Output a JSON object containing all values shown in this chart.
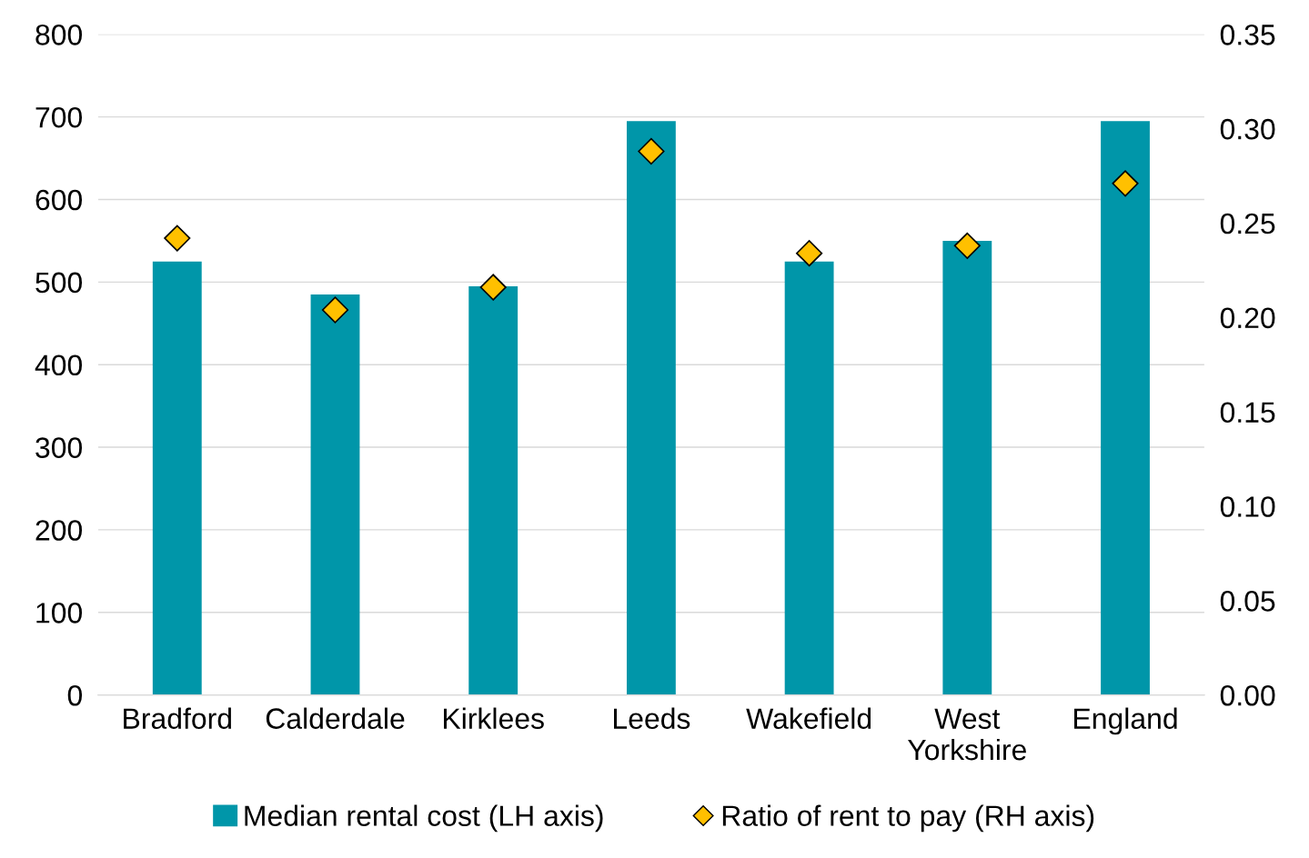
{
  "chart_data": {
    "type": "bar",
    "categories": [
      "Bradford",
      "Calderdale",
      "Kirklees",
      "Leeds",
      "Wakefield",
      "West\nYorkshire",
      "England"
    ],
    "series": [
      {
        "name": "Median rental cost (LH axis)",
        "color": "#0096a9",
        "values": [
          525,
          485,
          495,
          695,
          525,
          550,
          695
        ]
      },
      {
        "name": "Ratio of rent to pay (RH axis)",
        "type": "scatter",
        "axis": "y2",
        "color": "#ffc000",
        "marker": "diamond",
        "values": [
          0.242,
          0.204,
          0.216,
          0.288,
          0.234,
          0.238,
          0.271
        ]
      }
    ],
    "ylim": [
      0,
      800
    ],
    "yticks": [
      0,
      100,
      200,
      300,
      400,
      500,
      600,
      700,
      800
    ],
    "y2lim": [
      0,
      0.35
    ],
    "y2ticks": [
      {
        "value": 0,
        "label": "0.00"
      },
      0.05,
      {
        "value": 0.1,
        "label": "0.10"
      },
      0.15,
      {
        "value": 0.2,
        "label": "0.20"
      },
      0.25,
      {
        "value": 0.3,
        "label": "0.30"
      },
      0.35
    ],
    "grid": "y",
    "legend": "bottom"
  }
}
